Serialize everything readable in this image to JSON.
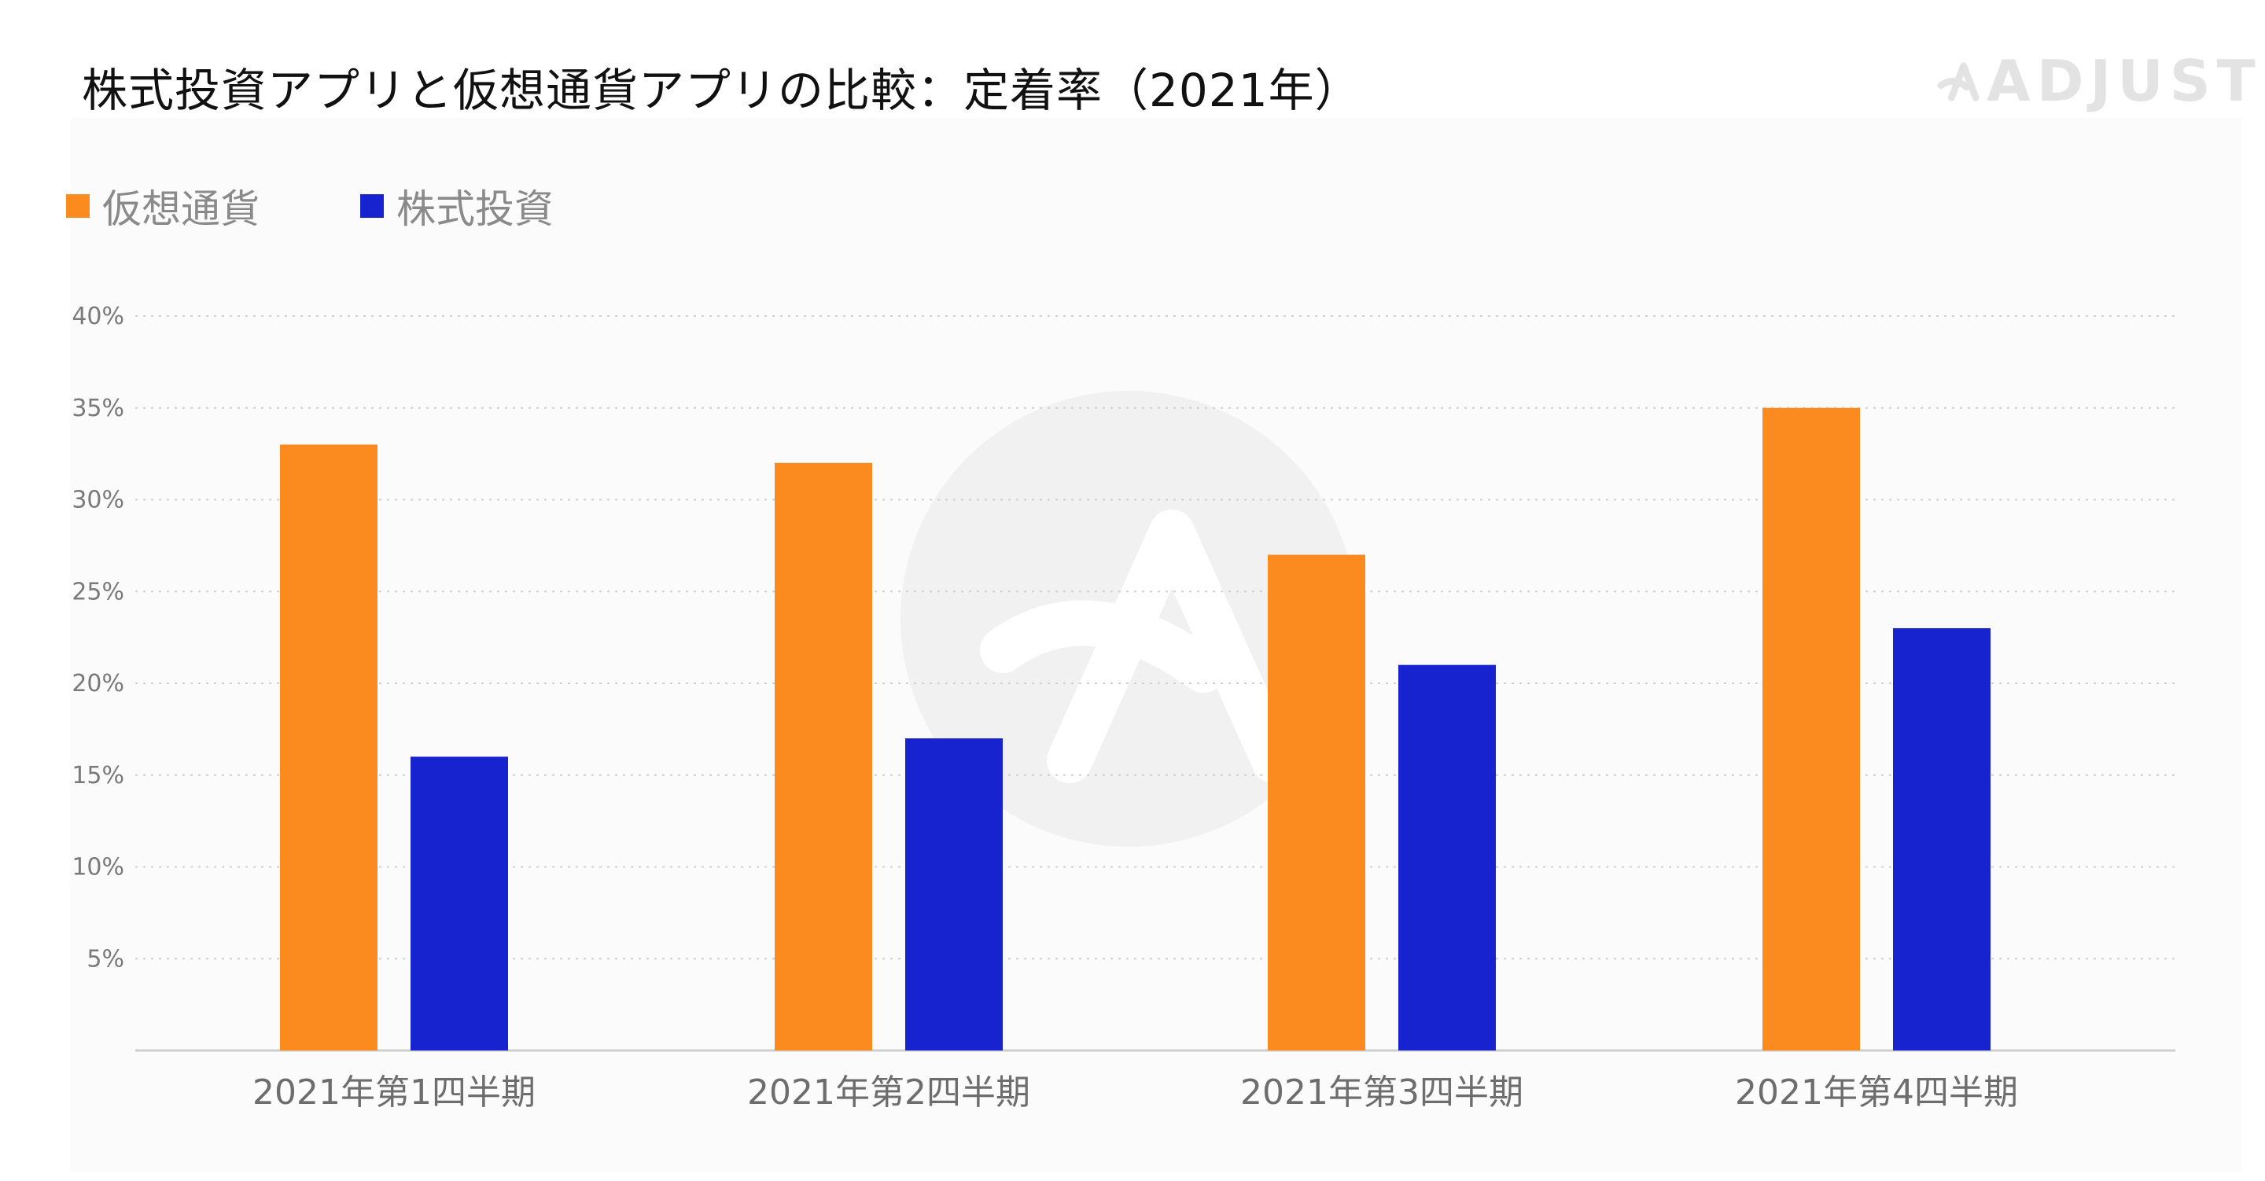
{
  "title": "株式投資アプリと仮想通貨アプリの比較：定着率（2021年）",
  "brand": {
    "name": "ADJUST",
    "icon": "adjust-logo-icon"
  },
  "colors": {
    "crypto": "#fb8b1e",
    "stock": "#1723cf",
    "grid": "#d0d0d0",
    "axis": "#cfcfcf",
    "tick_text": "#7a7a7a",
    "category_text": "#6d6d6d"
  },
  "legend": [
    {
      "label": "仮想通貨",
      "color": "#fb8b1e"
    },
    {
      "label": "株式投資",
      "color": "#1723cf"
    }
  ],
  "chart_data": {
    "type": "bar",
    "title": "株式投資アプリと仮想通貨アプリの比較：定着率（2021年）",
    "xlabel": "",
    "ylabel": "",
    "categories": [
      "2021年第1四半期",
      "2021年第2四半期",
      "2021年第3四半期",
      "2021年第4四半期"
    ],
    "series": [
      {
        "name": "仮想通貨",
        "values": [
          33,
          32,
          27,
          35
        ],
        "color": "#fb8b1e"
      },
      {
        "name": "株式投資",
        "values": [
          16,
          17,
          21,
          23
        ],
        "color": "#1723cf"
      }
    ],
    "ylim": [
      0,
      40
    ],
    "yticks": [
      5,
      10,
      15,
      20,
      25,
      30,
      35,
      40
    ],
    "ytick_labels": [
      "5%",
      "10%",
      "15%",
      "20%",
      "25%",
      "30%",
      "35%",
      "40%"
    ],
    "grid": true,
    "legend_position": "top-left"
  }
}
